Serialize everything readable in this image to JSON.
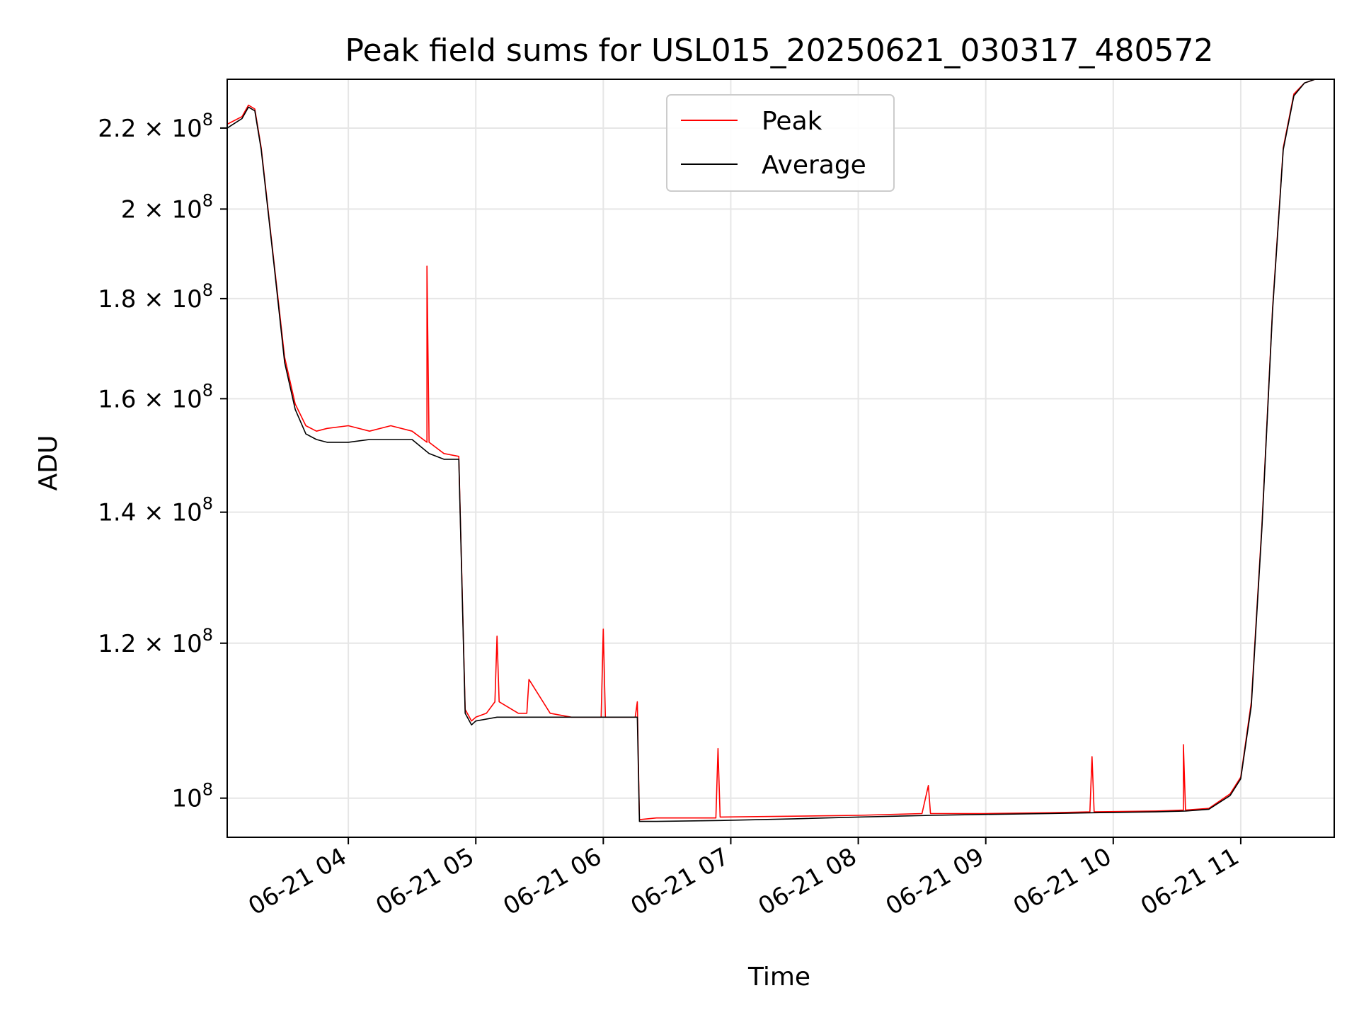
{
  "chart_data": {
    "type": "line",
    "title": "Peak field sums for USL015_20250621_030317_480572",
    "xlabel": "Time",
    "ylabel": "ADU",
    "x_range": [
      "2025-06-21 03:03",
      "2025-06-21 11:44"
    ],
    "y_range": [
      95500000,
      233000000
    ],
    "y_scale": "log",
    "grid": true,
    "legend_position": "top-center",
    "x_ticks": [
      {
        "value": "2025-06-21 04:00",
        "label": "06-21 04"
      },
      {
        "value": "2025-06-21 05:00",
        "label": "06-21 05"
      },
      {
        "value": "2025-06-21 06:00",
        "label": "06-21 06"
      },
      {
        "value": "2025-06-21 07:00",
        "label": "06-21 07"
      },
      {
        "value": "2025-06-21 08:00",
        "label": "06-21 08"
      },
      {
        "value": "2025-06-21 09:00",
        "label": "06-21 09"
      },
      {
        "value": "2025-06-21 10:00",
        "label": "06-21 10"
      },
      {
        "value": "2025-06-21 11:00",
        "label": "06-21 11"
      }
    ],
    "y_ticks": [
      {
        "value": 100000000,
        "mantissa": "10",
        "exponent": "8"
      },
      {
        "value": 120000000,
        "mantissa": "1.2 × 10",
        "exponent": "8"
      },
      {
        "value": 140000000,
        "mantissa": "1.4 × 10",
        "exponent": "8"
      },
      {
        "value": 160000000,
        "mantissa": "1.6 × 10",
        "exponent": "8"
      },
      {
        "value": 180000000,
        "mantissa": "1.8 × 10",
        "exponent": "8"
      },
      {
        "value": 200000000,
        "mantissa": "2 × 10",
        "exponent": "8"
      },
      {
        "value": 220000000,
        "mantissa": "2.2 × 10",
        "exponent": "8"
      }
    ],
    "series": [
      {
        "name": "Peak",
        "color": "#ff0000",
        "x": [
          "2025-06-21 03:03",
          "2025-06-21 03:10",
          "2025-06-21 03:13",
          "2025-06-21 03:16",
          "2025-06-21 03:19",
          "2025-06-21 03:25",
          "2025-06-21 03:30",
          "2025-06-21 03:35",
          "2025-06-21 03:40",
          "2025-06-21 03:45",
          "2025-06-21 03:50",
          "2025-06-21 04:00",
          "2025-06-21 04:10",
          "2025-06-21 04:20",
          "2025-06-21 04:30",
          "2025-06-21 04:37",
          "2025-06-21 04:37",
          "2025-06-21 04:38",
          "2025-06-21 04:45",
          "2025-06-21 04:52",
          "2025-06-21 04:55",
          "2025-06-21 04:58",
          "2025-06-21 05:00",
          "2025-06-21 05:05",
          "2025-06-21 05:09",
          "2025-06-21 05:10",
          "2025-06-21 05:11",
          "2025-06-21 05:20",
          "2025-06-21 05:24",
          "2025-06-21 05:25",
          "2025-06-21 05:35",
          "2025-06-21 05:45",
          "2025-06-21 05:59",
          "2025-06-21 06:00",
          "2025-06-21 06:01",
          "2025-06-21 06:10",
          "2025-06-21 06:15",
          "2025-06-21 06:16",
          "2025-06-21 06:17",
          "2025-06-21 06:25",
          "2025-06-21 06:53",
          "2025-06-21 06:54",
          "2025-06-21 06:55",
          "2025-06-21 07:30",
          "2025-06-21 08:00",
          "2025-06-21 08:30",
          "2025-06-21 08:33",
          "2025-06-21 08:34",
          "2025-06-21 08:35",
          "2025-06-21 09:00",
          "2025-06-21 09:30",
          "2025-06-21 09:49",
          "2025-06-21 09:50",
          "2025-06-21 09:51",
          "2025-06-21 10:20",
          "2025-06-21 10:33",
          "2025-06-21 10:33",
          "2025-06-21 10:34",
          "2025-06-21 10:45",
          "2025-06-21 10:55",
          "2025-06-21 11:00",
          "2025-06-21 11:05",
          "2025-06-21 11:10",
          "2025-06-21 11:15",
          "2025-06-21 11:20",
          "2025-06-21 11:25",
          "2025-06-21 11:30",
          "2025-06-21 11:35",
          "2025-06-21 11:44"
        ],
        "y": [
          221000000,
          223000000,
          226000000,
          225000000,
          215000000,
          188000000,
          168000000,
          159000000,
          155000000,
          154000000,
          154500000,
          155000000,
          154000000,
          155000000,
          154000000,
          152000000,
          187000000,
          152000000,
          150000000,
          149500000,
          111000000,
          109500000,
          110000000,
          110500000,
          112000000,
          121000000,
          112000000,
          110500000,
          110500000,
          115000000,
          110500000,
          110000000,
          110000000,
          122000000,
          110000000,
          110000000,
          110000000,
          112000000,
          97500000,
          97700000,
          97700000,
          106000000,
          97800000,
          97900000,
          98000000,
          98200000,
          101500000,
          98200000,
          98200000,
          98200000,
          98300000,
          98400000,
          105000000,
          98400000,
          98500000,
          98600000,
          106500000,
          98600000,
          98800000,
          100500000,
          102500000,
          112000000,
          138000000,
          178000000,
          215000000,
          229000000,
          232000000,
          233000000,
          233000000
        ]
      },
      {
        "name": "Average",
        "color": "#000000",
        "x": [
          "2025-06-21 03:03",
          "2025-06-21 03:10",
          "2025-06-21 03:13",
          "2025-06-21 03:16",
          "2025-06-21 03:19",
          "2025-06-21 03:25",
          "2025-06-21 03:30",
          "2025-06-21 03:35",
          "2025-06-21 03:40",
          "2025-06-21 03:45",
          "2025-06-21 03:50",
          "2025-06-21 04:00",
          "2025-06-21 04:10",
          "2025-06-21 04:20",
          "2025-06-21 04:30",
          "2025-06-21 04:38",
          "2025-06-21 04:45",
          "2025-06-21 04:52",
          "2025-06-21 04:55",
          "2025-06-21 04:58",
          "2025-06-21 05:00",
          "2025-06-21 05:10",
          "2025-06-21 05:20",
          "2025-06-21 05:35",
          "2025-06-21 05:45",
          "2025-06-21 06:00",
          "2025-06-21 06:15",
          "2025-06-21 06:16",
          "2025-06-21 06:17",
          "2025-06-21 06:25",
          "2025-06-21 06:55",
          "2025-06-21 07:30",
          "2025-06-21 08:00",
          "2025-06-21 08:35",
          "2025-06-21 09:00",
          "2025-06-21 09:30",
          "2025-06-21 09:51",
          "2025-06-21 10:20",
          "2025-06-21 10:34",
          "2025-06-21 10:45",
          "2025-06-21 10:55",
          "2025-06-21 11:00",
          "2025-06-21 11:05",
          "2025-06-21 11:10",
          "2025-06-21 11:15",
          "2025-06-21 11:20",
          "2025-06-21 11:25",
          "2025-06-21 11:30",
          "2025-06-21 11:35",
          "2025-06-21 11:44"
        ],
        "y": [
          220000000,
          222500000,
          225500000,
          224500000,
          214500000,
          187500000,
          167000000,
          158000000,
          153500000,
          152500000,
          152000000,
          152000000,
          152500000,
          152500000,
          152500000,
          150000000,
          149000000,
          149000000,
          110500000,
          109000000,
          109500000,
          110000000,
          110000000,
          110000000,
          110000000,
          110000000,
          110000000,
          110000000,
          97300000,
          97300000,
          97400000,
          97600000,
          97800000,
          98000000,
          98100000,
          98200000,
          98300000,
          98400000,
          98500000,
          98700000,
          100300000,
          102300000,
          111500000,
          137500000,
          177500000,
          214500000,
          228500000,
          232000000,
          233000000,
          233000000
        ]
      }
    ]
  }
}
